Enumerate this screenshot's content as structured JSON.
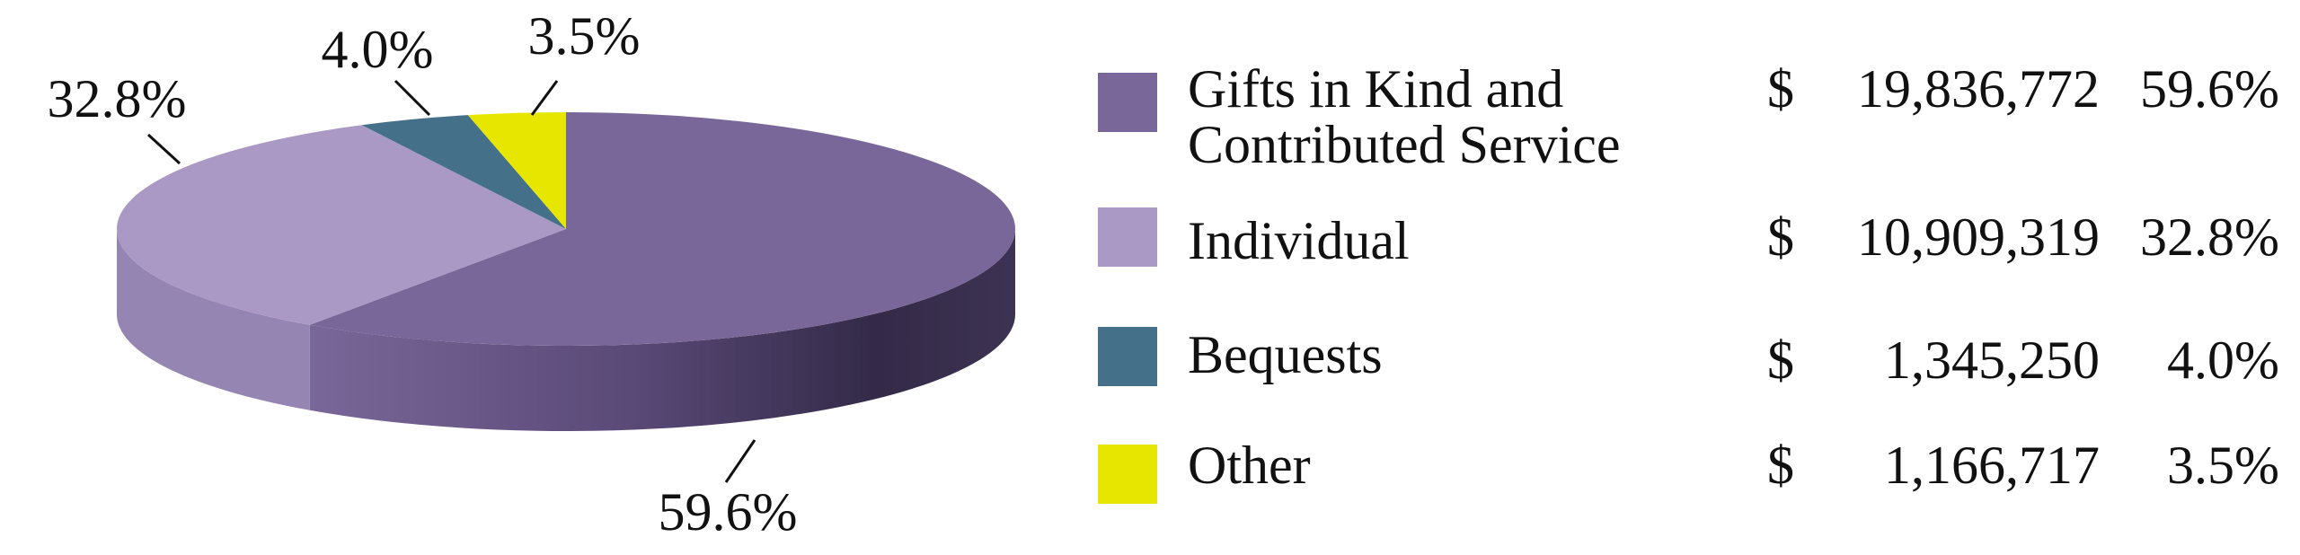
{
  "chart_data": {
    "type": "pie",
    "style": "3d",
    "slices": [
      {
        "label": "Gifts in Kind and Contributed Service",
        "label_lines": [
          "Gifts in Kind and",
          "Contributed Service"
        ],
        "amount": "19,836,772",
        "percent": "59.6%",
        "value": 59.6,
        "color": "#7a6799",
        "side_color": "#4f4068"
      },
      {
        "label": "Individual",
        "label_lines": [
          "Individual"
        ],
        "amount": "10,909,319",
        "percent": "32.8%",
        "value": 32.8,
        "color": "#a999c4",
        "side_color": "#9585b3"
      },
      {
        "label": "Bequests",
        "label_lines": [
          "Bequests"
        ],
        "amount": "1,345,250",
        "percent": "4.0%",
        "value": 4.0,
        "color": "#44708a",
        "side_color": "#2f5468"
      },
      {
        "label": "Other",
        "label_lines": [
          "Other"
        ],
        "amount": "1,166,717",
        "percent": "3.5%",
        "value": 3.5,
        "color": "#e6e600",
        "side_color": "#b8b800"
      }
    ],
    "currency_symbol": "$",
    "legend_position": "right"
  }
}
